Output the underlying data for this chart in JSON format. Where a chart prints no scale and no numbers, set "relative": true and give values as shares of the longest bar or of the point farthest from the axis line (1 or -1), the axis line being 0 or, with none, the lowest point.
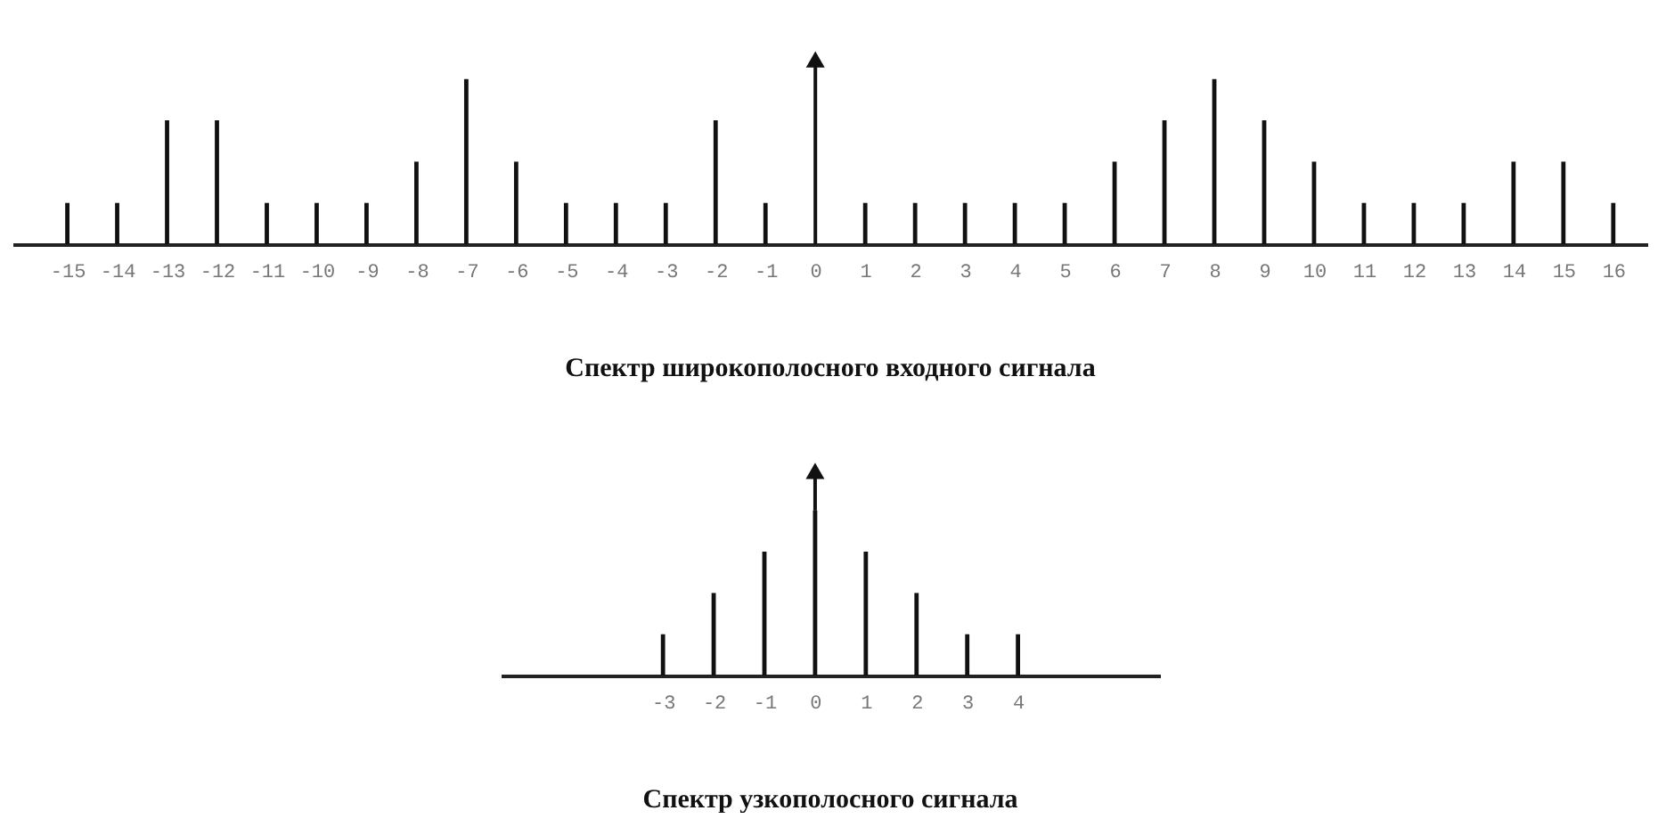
{
  "chart_data": [
    {
      "type": "bar",
      "title": "Спектр широкополосного входного сигнала",
      "relative": true,
      "color": "#111111",
      "x": [
        -15,
        -14,
        -13,
        -12,
        -11,
        -10,
        -9,
        -8,
        -7,
        -6,
        -5,
        -4,
        -3,
        -2,
        -1,
        0,
        1,
        2,
        3,
        4,
        5,
        6,
        7,
        8,
        9,
        10,
        11,
        12,
        13,
        14,
        15,
        16
      ],
      "values": [
        0.25,
        0.25,
        0.75,
        0.75,
        0.25,
        0.25,
        0.25,
        0.5,
        1,
        0.5,
        0.25,
        0.25,
        0.25,
        0.75,
        0.25,
        null,
        0.25,
        0.25,
        0.25,
        0.25,
        0.25,
        0.5,
        0.75,
        1,
        0.75,
        0.5,
        0.25,
        0.25,
        0.25,
        0.5,
        0.5,
        0.25
      ],
      "xlim": [
        -16.1,
        16.7
      ],
      "xticks": [
        -15,
        -14,
        -13,
        -12,
        -11,
        -10,
        -9,
        -8,
        -7,
        -6,
        -5,
        -4,
        -3,
        -2,
        -1,
        0,
        1,
        2,
        3,
        4,
        5,
        6,
        7,
        8,
        9,
        10,
        11,
        12,
        13,
        14,
        15,
        16
      ]
    },
    {
      "type": "bar",
      "title": "Спектр узкополосного сигнала",
      "relative": true,
      "color": "#111111",
      "x": [
        -3,
        -2,
        -1,
        0,
        1,
        2,
        3,
        4
      ],
      "values": [
        0.25,
        0.5,
        0.75,
        1,
        0.75,
        0.5,
        0.25,
        0.25
      ],
      "xlim": [
        -6.2,
        6.8
      ],
      "xticks": [
        -3,
        -2,
        -1,
        0,
        1,
        2,
        3,
        4
      ]
    }
  ]
}
